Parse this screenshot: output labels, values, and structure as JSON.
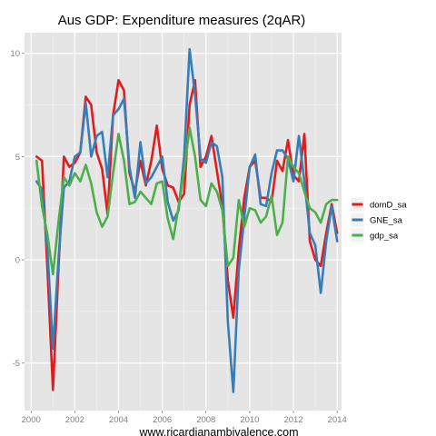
{
  "chart_data": {
    "type": "line",
    "title": "Aus GDP: Expenditure measures (2qAR)",
    "xlabel": "www.ricardianambivalence.com",
    "ylabel": "",
    "xlim": [
      1999.7,
      2014.2
    ],
    "ylim": [
      -7.3,
      11.0
    ],
    "x_ticks": [
      2000,
      2002,
      2004,
      2006,
      2008,
      2010,
      2012,
      2014
    ],
    "y_ticks": [
      -5,
      0,
      5,
      10
    ],
    "grid": true,
    "legend_position": "right",
    "x": [
      2000.25,
      2000.5,
      2000.75,
      2001.0,
      2001.25,
      2001.5,
      2001.75,
      2002.0,
      2002.25,
      2002.5,
      2002.75,
      2003.0,
      2003.25,
      2003.5,
      2003.75,
      2004.0,
      2004.25,
      2004.5,
      2004.75,
      2005.0,
      2005.25,
      2005.5,
      2005.75,
      2006.0,
      2006.25,
      2006.5,
      2006.75,
      2007.0,
      2007.25,
      2007.5,
      2007.75,
      2008.0,
      2008.25,
      2008.5,
      2008.75,
      2009.0,
      2009.25,
      2009.5,
      2009.75,
      2010.0,
      2010.25,
      2010.5,
      2010.75,
      2011.0,
      2011.25,
      2011.5,
      2011.75,
      2012.0,
      2012.25,
      2012.5,
      2012.75,
      2013.0,
      2013.25,
      2013.5,
      2013.75,
      2014.0
    ],
    "series": [
      {
        "name": "domD_sa",
        "color": "#e41a1c",
        "values": [
          5.0,
          4.8,
          -0.5,
          -6.3,
          -0.5,
          5.0,
          4.5,
          4.7,
          5.2,
          7.9,
          7.5,
          5.2,
          4.4,
          2.2,
          7.0,
          8.7,
          8.2,
          4.2,
          3.3,
          4.8,
          3.6,
          4.8,
          6.5,
          4.4,
          3.6,
          3.5,
          2.8,
          3.2,
          7.5,
          8.7,
          4.5,
          5.0,
          6.0,
          4.3,
          2.6,
          -1.0,
          -2.8,
          0.5,
          3.0,
          4.5,
          4.8,
          3.0,
          3.0,
          2.8,
          4.8,
          4.3,
          5.8,
          4.1,
          3.8,
          6.1,
          0.9,
          0.0,
          -0.3,
          1.3,
          2.7,
          1.3
        ]
      },
      {
        "name": "GNE_sa",
        "color": "#377eb8",
        "values": [
          3.8,
          3.4,
          0.5,
          -4.3,
          0.0,
          3.5,
          3.8,
          5.0,
          5.2,
          7.6,
          5.0,
          6.0,
          6.2,
          4.0,
          7.0,
          7.3,
          7.8,
          4.5,
          3.0,
          5.7,
          3.7,
          4.0,
          4.5,
          5.0,
          2.8,
          1.9,
          2.4,
          5.0,
          10.2,
          8.0,
          4.9,
          4.7,
          5.7,
          5.5,
          4.0,
          -3.0,
          -6.4,
          -0.5,
          2.0,
          4.5,
          5.1,
          2.7,
          2.6,
          4.2,
          5.3,
          5.3,
          4.9,
          3.8,
          6.0,
          3.8,
          1.3,
          0.7,
          -1.6,
          0.9,
          2.6,
          0.9
        ]
      },
      {
        "name": "gdp_sa",
        "color": "#4daf4a",
        "values": [
          4.8,
          2.6,
          1.2,
          -0.7,
          1.8,
          4.0,
          3.6,
          4.2,
          3.8,
          4.6,
          3.7,
          2.3,
          1.6,
          2.1,
          4.2,
          6.1,
          4.8,
          2.7,
          2.8,
          3.3,
          3.0,
          2.7,
          3.7,
          3.8,
          2.0,
          1.0,
          2.6,
          4.3,
          6.4,
          5.0,
          2.9,
          2.6,
          3.7,
          3.3,
          2.4,
          -0.3,
          0.1,
          2.9,
          1.6,
          2.5,
          2.4,
          1.8,
          2.1,
          3.1,
          1.2,
          1.8,
          5.0,
          4.5,
          4.2,
          3.3,
          2.5,
          2.3,
          1.8,
          2.7,
          2.9,
          2.9
        ]
      }
    ]
  }
}
